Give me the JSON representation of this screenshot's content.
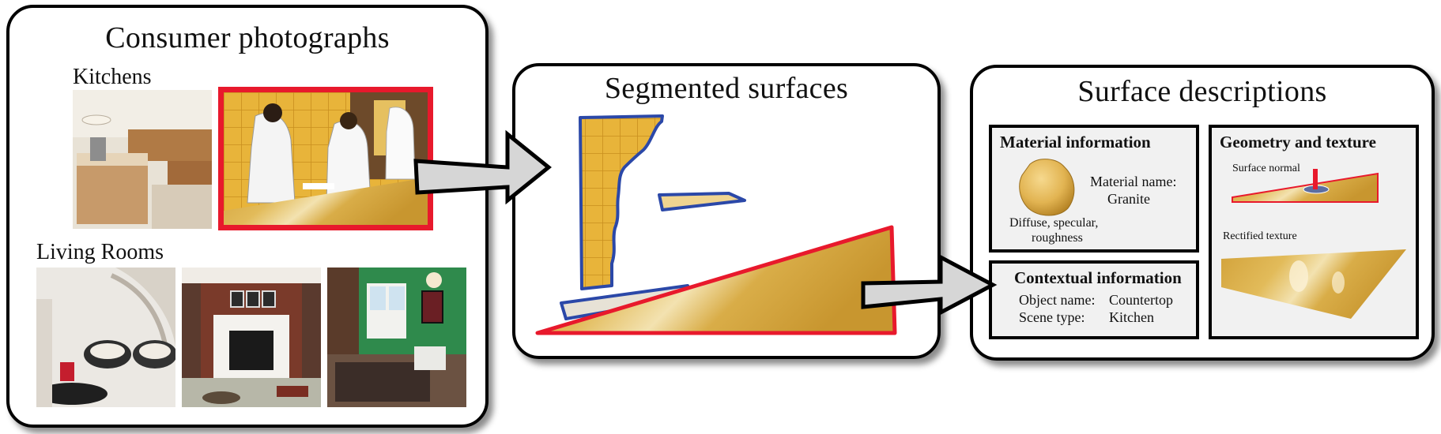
{
  "panels": {
    "consumer": {
      "title": "Consumer photographs",
      "kitchens_label": "Kitchens",
      "living_rooms_label": "Living Rooms"
    },
    "segmented": {
      "title": "Segmented surfaces"
    },
    "descriptions": {
      "title": "Surface descriptions",
      "material": {
        "title": "Material information",
        "name_label": "Material name:",
        "name_value": "Granite",
        "properties": [
          "Diffuse, specular,",
          "roughness"
        ]
      },
      "geometry": {
        "title": "Geometry and texture",
        "normal_label": "Surface normal",
        "texture_label": "Rectified texture"
      },
      "contextual": {
        "title": "Contextual information",
        "object_label": "Object name:",
        "object_value": "Countertop",
        "scene_label": "Scene type:",
        "scene_value": "Kitchen"
      }
    }
  },
  "colors": {
    "highlight_red": "#e8192c",
    "segment_blue": "#2b48a8",
    "tile_yellow": "#e9b53a",
    "granite": "#d9a93c",
    "arrow_fill": "#d6d6d6"
  }
}
